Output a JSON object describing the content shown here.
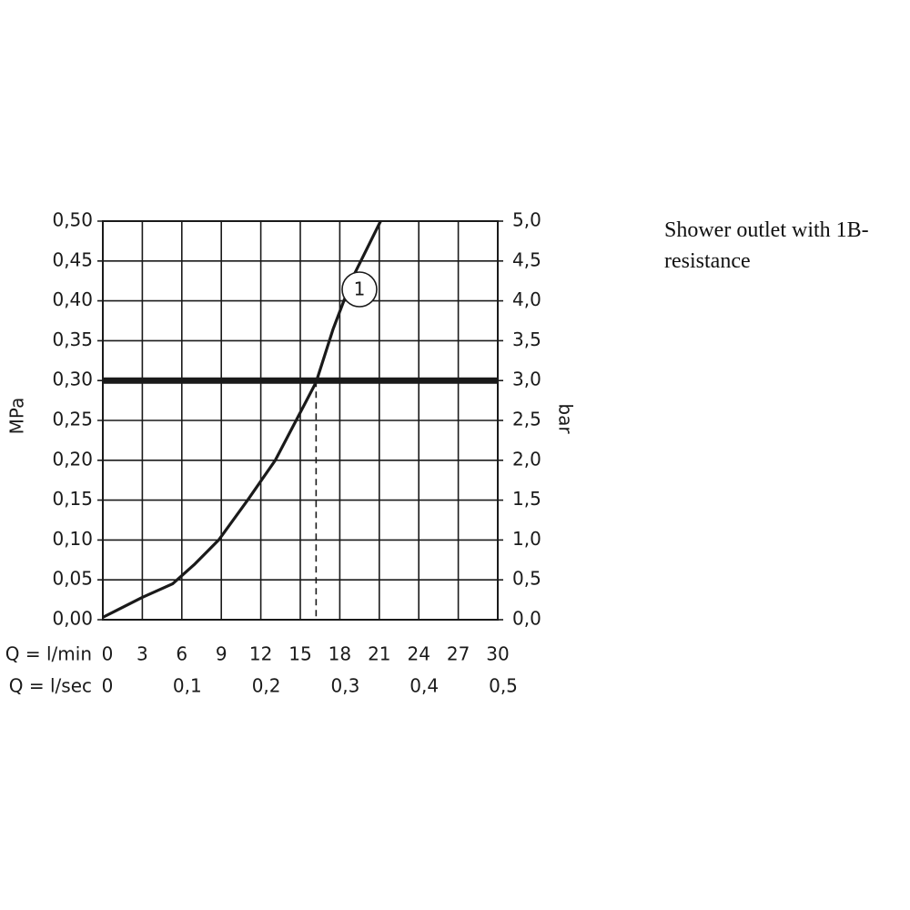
{
  "chart_data": {
    "type": "line",
    "note": "Shower outlet with 1B-resistance",
    "xlabel": "Q = l/min",
    "x2label": "Q = l/sec",
    "ylabel": "MPa",
    "y2label": "bar",
    "xlim": [
      0,
      30
    ],
    "xticks": [
      0,
      3,
      6,
      9,
      12,
      15,
      18,
      21,
      24,
      27,
      30
    ],
    "x2lim": [
      0,
      0.5
    ],
    "x2ticks": [
      0,
      {
        "value": 0.1,
        "label": "0,1"
      },
      {
        "value": 0.2,
        "label": "0,2"
      },
      {
        "value": 0.3,
        "label": "0,3"
      },
      {
        "value": 0.4,
        "label": "0,4"
      },
      {
        "value": 0.5,
        "label": "0,5"
      }
    ],
    "ylim": [
      0,
      0.5
    ],
    "yticks": [
      {
        "value": 0,
        "label": "0,00"
      },
      {
        "value": 0.05,
        "label": "0,05"
      },
      {
        "value": 0.1,
        "label": "0,10"
      },
      {
        "value": 0.15,
        "label": "0,15"
      },
      {
        "value": 0.2,
        "label": "0,20"
      },
      {
        "value": 0.25,
        "label": "0,25"
      },
      {
        "value": 0.3,
        "label": "0,30"
      },
      {
        "value": 0.35,
        "label": "0,35"
      },
      {
        "value": 0.4,
        "label": "0,40"
      },
      {
        "value": 0.45,
        "label": "0,45"
      },
      {
        "value": 0.5,
        "label": "0,50"
      }
    ],
    "y2lim": [
      0,
      5
    ],
    "y2ticks": [
      {
        "value": 0,
        "label": "0,0"
      },
      {
        "value": 0.5,
        "label": "0,5"
      },
      {
        "value": 1,
        "label": "1,0"
      },
      {
        "value": 1.5,
        "label": "1,5"
      },
      {
        "value": 2,
        "label": "2,0"
      },
      {
        "value": 2.5,
        "label": "2,5"
      },
      {
        "value": 3,
        "label": "3,0"
      },
      {
        "value": 3.5,
        "label": "3,5"
      },
      {
        "value": 4,
        "label": "4,0"
      },
      {
        "value": 4.5,
        "label": "4,5"
      },
      {
        "value": 5,
        "label": "5,0"
      }
    ],
    "grid": true,
    "reference_y": 0.3,
    "reference_x": 16.2,
    "series": [
      {
        "name": "1",
        "color": "#1a1a1a",
        "x": [
          0,
          3,
          5.3,
          7,
          8.8,
          11,
          13.1,
          15,
          16.2,
          17.5,
          19,
          21.1
        ],
        "values": [
          0.003,
          0.028,
          0.045,
          0.07,
          0.1,
          0.15,
          0.2,
          0.26,
          0.298,
          0.365,
          0.43,
          0.5
        ]
      }
    ]
  }
}
